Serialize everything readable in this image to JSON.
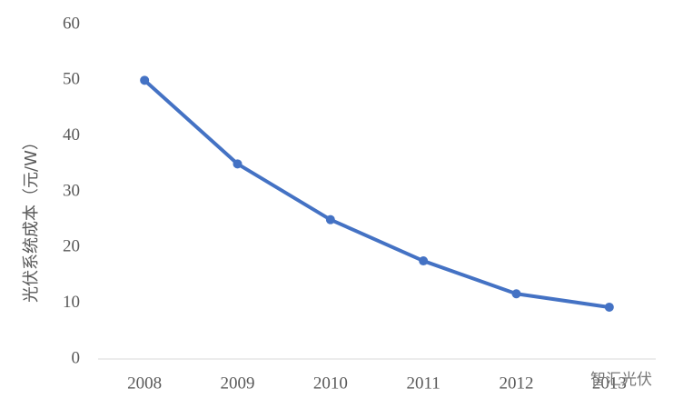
{
  "chart_data": {
    "type": "line",
    "y_label": "光伏系统成本（元/W）",
    "categories": [
      "2008",
      "2009",
      "2010",
      "2011",
      "2012",
      "2013"
    ],
    "series": [
      {
        "name": "光伏系统成本",
        "color": "#4472c4",
        "values": [
          50,
          35,
          25,
          17.6,
          11.7,
          9.3
        ]
      }
    ],
    "ylim": [
      0,
      60
    ],
    "yticks": [
      0,
      10,
      20,
      30,
      40,
      50,
      60
    ],
    "grid": false,
    "watermark": "智汇光伏"
  }
}
